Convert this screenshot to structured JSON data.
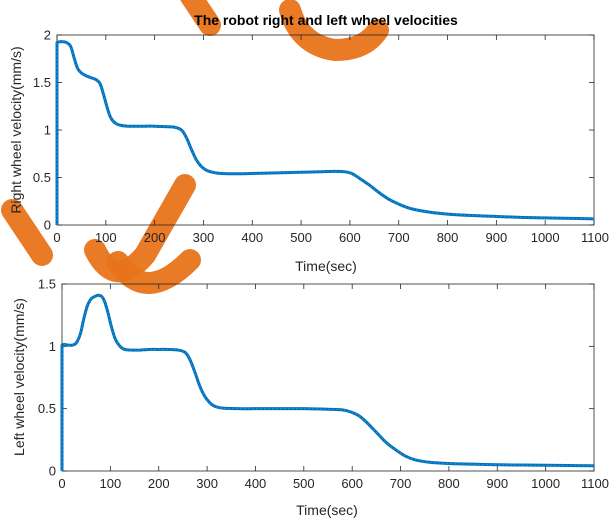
{
  "chart_data": [
    {
      "type": "line",
      "title": "The robot right and left wheel velocities",
      "xlabel": "Time(sec)",
      "ylabel": "Right wheel velocity(mm/s)",
      "xlim": [
        0,
        1100
      ],
      "ylim": [
        0,
        2
      ],
      "xticks": [
        0,
        100,
        200,
        300,
        400,
        500,
        600,
        700,
        800,
        900,
        1000,
        1100
      ],
      "yticks": [
        0,
        0.5,
        1,
        1.5,
        2
      ],
      "grid": false,
      "series": [
        {
          "color": "#0072bd",
          "x": [
            0,
            0,
            2,
            10,
            20,
            28,
            35,
            42,
            50,
            60,
            70,
            80,
            88,
            95,
            102,
            110,
            120,
            130,
            145,
            160,
            180,
            200,
            220,
            240,
            255,
            265,
            275,
            285,
            295,
            305,
            315,
            330,
            350,
            380,
            420,
            460,
            500,
            540,
            570,
            590,
            605,
            620,
            640,
            660,
            680,
            700,
            720,
            740,
            770,
            800,
            850,
            900,
            950,
            1000,
            1050,
            1100
          ],
          "y": [
            0,
            1.92,
            1.93,
            1.93,
            1.92,
            1.88,
            1.76,
            1.65,
            1.6,
            1.57,
            1.55,
            1.53,
            1.49,
            1.38,
            1.25,
            1.13,
            1.07,
            1.05,
            1.04,
            1.04,
            1.04,
            1.04,
            1.035,
            1.03,
            1.0,
            0.92,
            0.8,
            0.69,
            0.62,
            0.58,
            0.56,
            0.545,
            0.54,
            0.54,
            0.545,
            0.55,
            0.555,
            0.56,
            0.565,
            0.56,
            0.54,
            0.49,
            0.42,
            0.34,
            0.27,
            0.22,
            0.18,
            0.155,
            0.13,
            0.115,
            0.1,
            0.09,
            0.08,
            0.075,
            0.07,
            0.065
          ]
        }
      ]
    },
    {
      "type": "line",
      "title": "",
      "xlabel": "Time(sec)",
      "ylabel": "Left wheel velocity(mm/s)",
      "xlim": [
        0,
        1100
      ],
      "ylim": [
        0,
        1.5
      ],
      "xticks": [
        0,
        100,
        200,
        300,
        400,
        500,
        600,
        700,
        800,
        900,
        1000,
        1100
      ],
      "yticks": [
        0,
        0.5,
        1,
        1.5
      ],
      "grid": false,
      "series": [
        {
          "color": "#0072bd",
          "x": [
            0,
            0,
            3,
            12,
            22,
            30,
            38,
            45,
            52,
            60,
            68,
            75,
            82,
            88,
            95,
            102,
            110,
            120,
            130,
            145,
            160,
            180,
            200,
            220,
            240,
            255,
            265,
            275,
            285,
            295,
            305,
            315,
            330,
            360,
            400,
            450,
            500,
            550,
            580,
            600,
            615,
            630,
            650,
            670,
            690,
            710,
            730,
            760,
            800,
            850,
            900,
            950,
            1000,
            1050,
            1100
          ],
          "y": [
            0,
            1.01,
            1.02,
            1.01,
            1.01,
            1.03,
            1.1,
            1.22,
            1.32,
            1.38,
            1.4,
            1.41,
            1.4,
            1.36,
            1.27,
            1.16,
            1.06,
            1.0,
            0.975,
            0.97,
            0.97,
            0.975,
            0.975,
            0.975,
            0.97,
            0.95,
            0.89,
            0.79,
            0.68,
            0.6,
            0.55,
            0.52,
            0.505,
            0.5,
            0.5,
            0.5,
            0.5,
            0.495,
            0.49,
            0.47,
            0.44,
            0.39,
            0.31,
            0.23,
            0.17,
            0.12,
            0.09,
            0.07,
            0.06,
            0.055,
            0.05,
            0.048,
            0.046,
            0.044,
            0.042
          ]
        }
      ]
    }
  ]
}
